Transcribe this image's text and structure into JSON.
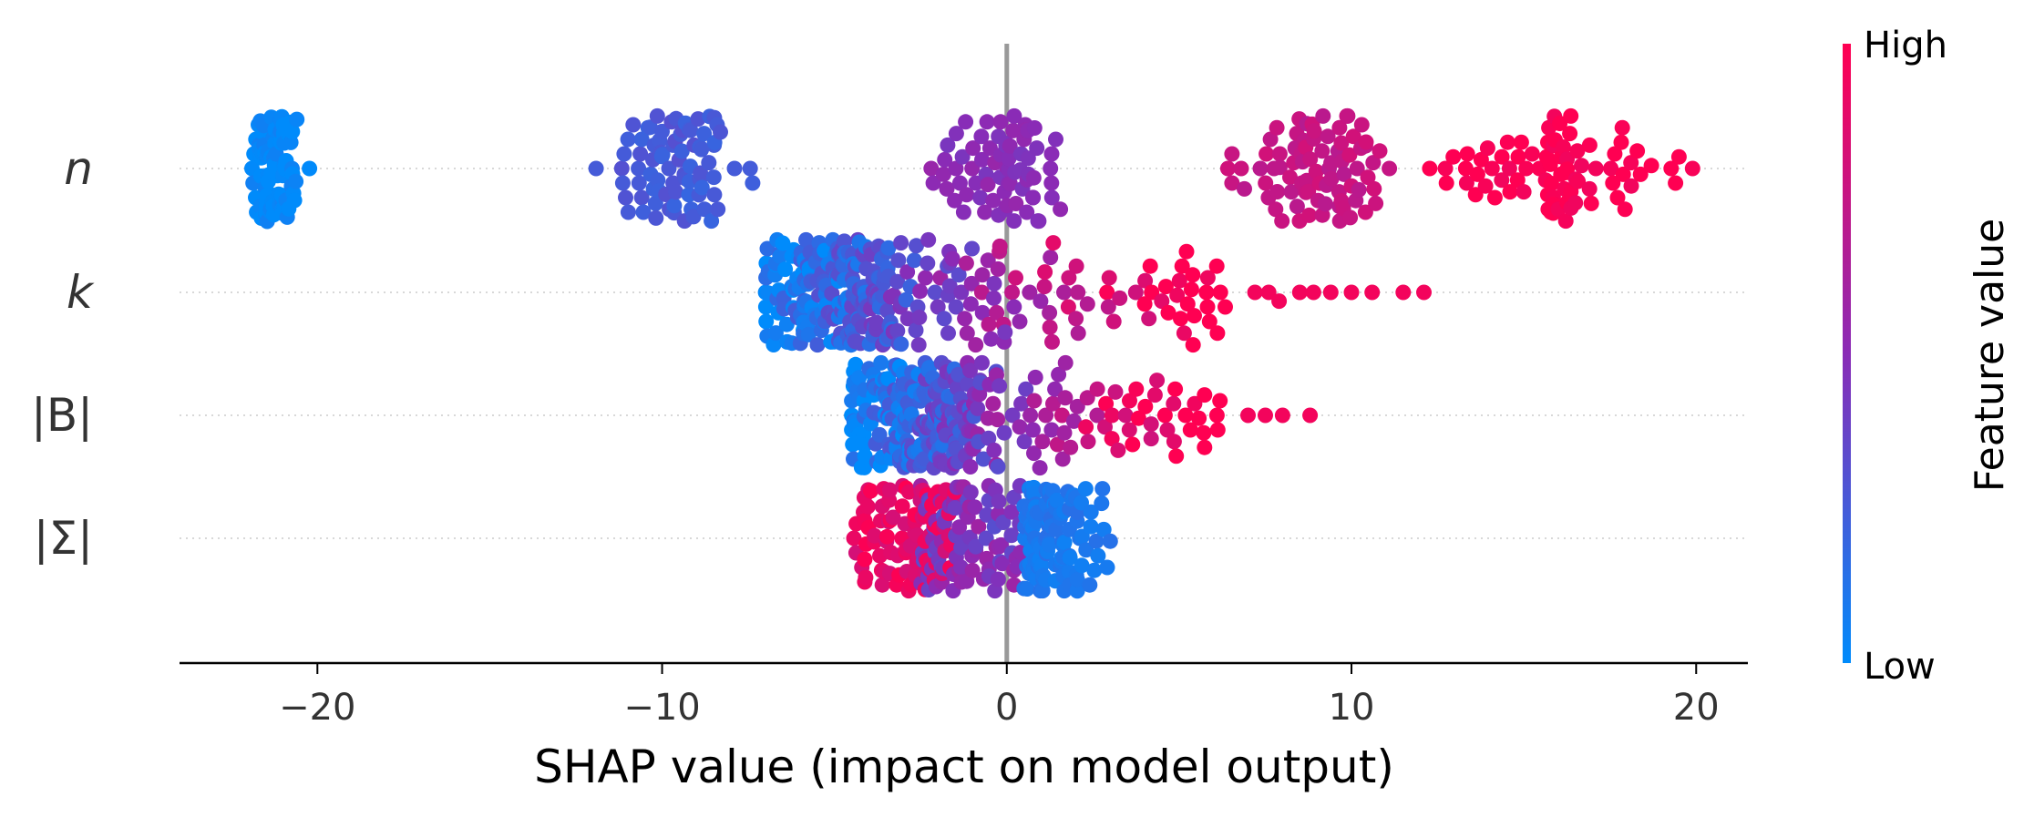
{
  "chart_data": {
    "type": "scatter",
    "subtype": "beeswarm",
    "title": "",
    "xlabel": "SHAP value (impact on model output)",
    "ylabel": "",
    "xlim": [
      -24,
      21.5
    ],
    "xticks": [
      -20,
      -10,
      0,
      10,
      20
    ],
    "xtick_labels": [
      "−20",
      "−10",
      "0",
      "10",
      "20"
    ],
    "zero_line": 0,
    "grid": false,
    "features": [
      "n",
      "k",
      "|B|",
      "|Σ|"
    ],
    "features_italic": [
      true,
      true,
      false,
      false
    ],
    "colorbar": {
      "title": "Feature value",
      "high_label": "High",
      "low_label": "Low",
      "low_color": "#008bfb",
      "mid_color": "#8a2bb6",
      "high_color": "#ff0052"
    },
    "series": [
      {
        "feature": "n",
        "clusters": [
          {
            "center": -21.2,
            "spread": 0.35,
            "count": 90,
            "color_value": 0.0
          },
          {
            "center": -9.6,
            "spread": 0.9,
            "count": 80,
            "color_value": 0.25
          },
          {
            "center": -0.1,
            "spread": 1.0,
            "count": 70,
            "color_value": 0.5
          },
          {
            "center": 9.0,
            "spread": 1.0,
            "count": 80,
            "color_value": 0.75
          },
          {
            "center": 16.2,
            "spread": 1.4,
            "count": 80,
            "color_value": 1.0
          }
        ],
        "outliers": [
          {
            "x": -7.9,
            "color_value": 0.25
          },
          {
            "x": -11.1,
            "color_value": 0.25
          },
          {
            "x": 1.3,
            "color_value": 0.5
          },
          {
            "x": -1.8,
            "color_value": 0.5
          },
          {
            "x": 7.8,
            "color_value": 0.75
          },
          {
            "x": 11.1,
            "color_value": 0.75
          },
          {
            "x": 13.6,
            "color_value": 1.0
          },
          {
            "x": 18.7,
            "color_value": 1.0
          },
          {
            "x": 19.4,
            "color_value": 1.0
          }
        ]
      },
      {
        "feature": "k",
        "range": [
          -7.0,
          6.4
        ],
        "peak": -4.5,
        "count": 320,
        "outliers": [
          {
            "x": 7.2,
            "color_value": 0.95
          },
          {
            "x": 7.6,
            "color_value": 0.95
          },
          {
            "x": 7.9,
            "color_value": 0.95
          },
          {
            "x": 8.5,
            "color_value": 0.95
          },
          {
            "x": 8.9,
            "color_value": 0.95
          },
          {
            "x": 9.4,
            "color_value": 0.95
          },
          {
            "x": 10.0,
            "color_value": 0.95
          },
          {
            "x": 10.6,
            "color_value": 0.95
          },
          {
            "x": 11.5,
            "color_value": 0.95
          },
          {
            "x": 12.1,
            "color_value": 0.95
          }
        ]
      },
      {
        "feature": "|B|",
        "range": [
          -4.5,
          6.3
        ],
        "peak": -2.5,
        "count": 300,
        "outliers": [
          {
            "x": 7.0,
            "color_value": 0.95
          },
          {
            "x": 7.5,
            "color_value": 0.95
          },
          {
            "x": 8.0,
            "color_value": 0.95
          },
          {
            "x": 8.8,
            "color_value": 0.95
          }
        ]
      },
      {
        "feature": "|Σ|",
        "range_high": [
          -4.5,
          -1.5
        ],
        "range_mid": [
          -2.5,
          0.5
        ],
        "range_low": [
          0.5,
          3.0
        ],
        "count": 300
      }
    ]
  }
}
